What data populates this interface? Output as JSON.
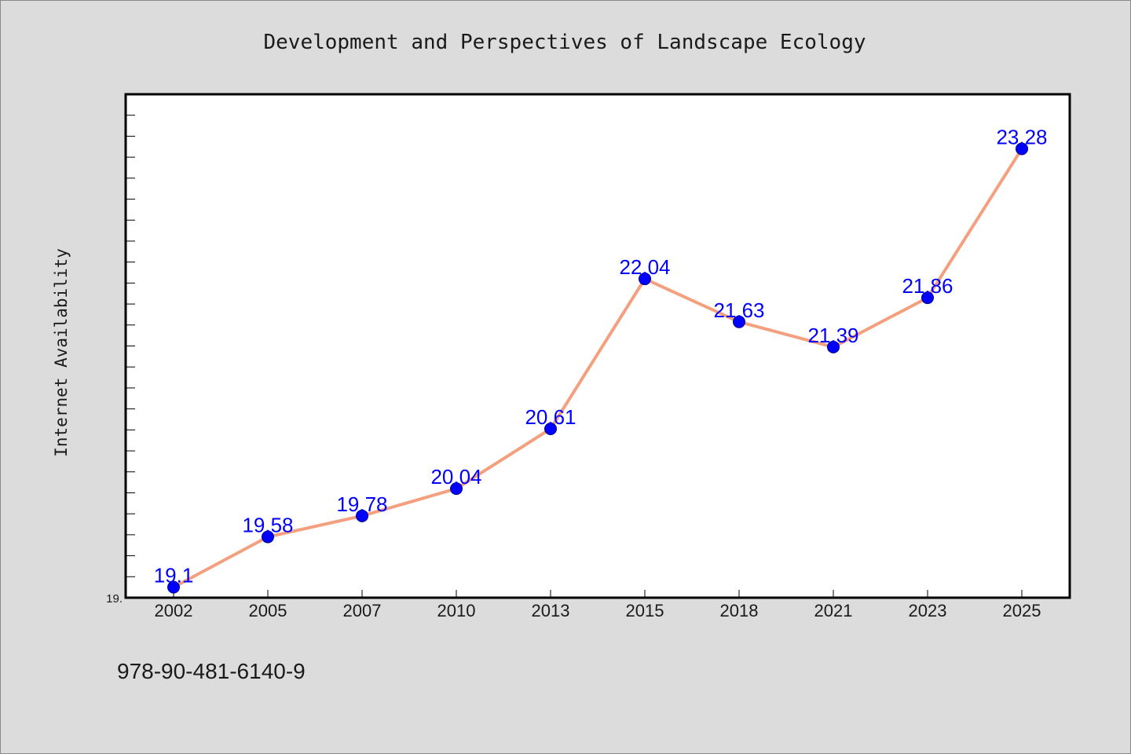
{
  "colors": {
    "background": "#dcdcdc",
    "plot_background": "#ffffff",
    "line": "#f4a07f",
    "marker": "#0000ff",
    "label": "#0000ff"
  },
  "footer": {
    "isbn": "978-90-481-6140-9"
  },
  "chart_data": {
    "type": "line",
    "title": "Development and Perspectives of Landscape Ecology",
    "xlabel": "",
    "ylabel": "Internet Availability",
    "categories": [
      "2002",
      "2005",
      "2007",
      "2010",
      "2013",
      "2015",
      "2018",
      "2021",
      "2023",
      "2025"
    ],
    "values": [
      19.1,
      19.58,
      19.78,
      20.04,
      20.61,
      22.04,
      21.63,
      21.39,
      21.86,
      23.28
    ],
    "labels": [
      "19.1",
      "19.58",
      "19.78",
      "20.04",
      "20.61",
      "22.04",
      "21.63",
      "21.39",
      "21.86",
      "23.28"
    ],
    "ylim": [
      19.0,
      23.8
    ],
    "ytick_labels": [
      "19."
    ],
    "grid": false,
    "legend": "none"
  }
}
